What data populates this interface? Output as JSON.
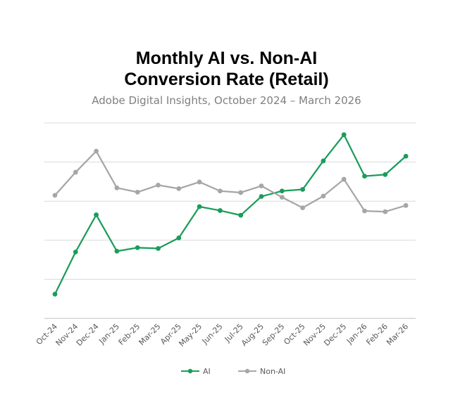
{
  "chart_data": {
    "type": "line",
    "title_lines": [
      "Monthly AI vs. Non-AI",
      "Conversion Rate (Retail)"
    ],
    "subtitle": "Adobe Digital Insights, October 2024 – March 2026",
    "categories": [
      "Oct-24",
      "Nov-24",
      "Dec-24",
      "Jan-25",
      "Feb-25",
      "Mar-25",
      "Apr-25",
      "May-25",
      "Jun-25",
      "Jul-25",
      "Aug-25",
      "Sep-25",
      "Oct-25",
      "Nov-25",
      "Dec-25",
      "Jan-26",
      "Feb-26",
      "Mar-26"
    ],
    "series": [
      {
        "name": "AI",
        "color": "#1a9c5b",
        "values": [
          0.62,
          1.7,
          2.65,
          1.72,
          1.81,
          1.79,
          2.06,
          2.86,
          2.76,
          2.64,
          3.12,
          3.26,
          3.3,
          4.03,
          4.7,
          3.64,
          3.68,
          4.15
        ]
      },
      {
        "name": "Non-AI",
        "color": "#a6a6a6",
        "values": [
          3.15,
          3.74,
          4.28,
          3.34,
          3.23,
          3.41,
          3.32,
          3.49,
          3.26,
          3.22,
          3.39,
          3.1,
          2.83,
          3.13,
          3.56,
          2.75,
          2.73,
          2.89
        ]
      }
    ],
    "ylim": [
      0,
      5
    ],
    "y_gridlines": [
      0,
      1,
      2,
      3,
      4,
      5
    ],
    "y_tick_labels_shown": false,
    "grid": true,
    "legend": "bottom"
  }
}
